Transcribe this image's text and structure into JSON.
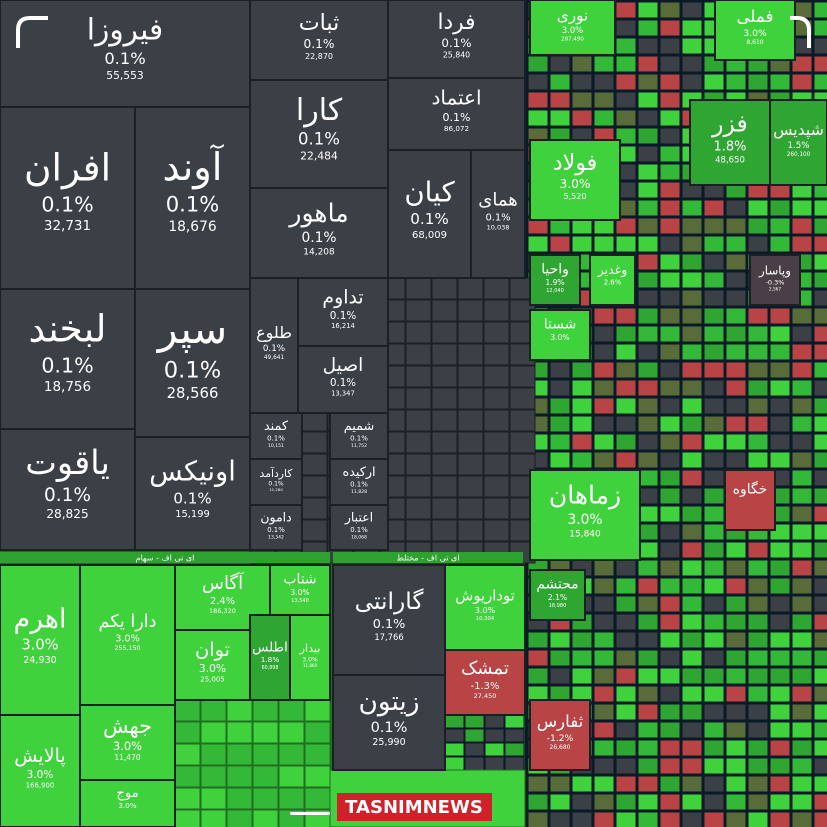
{
  "tiles": [
    {
      "name": "فیروزا",
      "change": "0.1%",
      "volume": "55,553",
      "color": "#3b3f46"
    },
    {
      "name": "ثبات",
      "change": "0.1%",
      "volume": "22,870",
      "color": "#3b3f46"
    },
    {
      "name": "فردا",
      "change": "0.1%",
      "volume": "25,840",
      "color": "#3b3f46"
    },
    {
      "name": "اعتماد",
      "change": "0.1%",
      "volume": "86,072",
      "color": "#3b3f46"
    },
    {
      "name": "افران",
      "change": "0.1%",
      "volume": "32,731",
      "color": "#3b3f46"
    },
    {
      "name": "آوند",
      "change": "0.1%",
      "volume": "18,676",
      "color": "#3b3f46"
    },
    {
      "name": "کارا",
      "change": "0.1%",
      "volume": "22,484",
      "color": "#3b3f46"
    },
    {
      "name": "ماهور",
      "change": "0.1%",
      "volume": "14,208",
      "color": "#3b3f46"
    },
    {
      "name": "کیان",
      "change": "0.1%",
      "volume": "68,009",
      "color": "#3b3f46"
    },
    {
      "name": "همای",
      "change": "0.1%",
      "volume": "10,038",
      "color": "#3b3f46"
    },
    {
      "name": "لبخند",
      "change": "0.1%",
      "volume": "18,756",
      "color": "#3b3f46"
    },
    {
      "name": "سپر",
      "change": "0.1%",
      "volume": "28,566",
      "color": "#3b3f46"
    },
    {
      "name": "یاقوت",
      "change": "0.1%",
      "volume": "28,825",
      "color": "#3b3f46"
    },
    {
      "name": "اونیکس",
      "change": "0.1%",
      "volume": "15,199",
      "color": "#3b3f46"
    },
    {
      "name": "تداوم",
      "change": "0.1%",
      "volume": "16,214",
      "color": "#3b3f46"
    },
    {
      "name": "اصیل",
      "change": "0.1%",
      "volume": "13,347",
      "color": "#3b3f46"
    },
    {
      "name": "طلوع",
      "change": "0.1%",
      "volume": "49,641",
      "color": "#3b3f46"
    },
    {
      "name": "کمند",
      "change": "0.1%",
      "volume": "10,151",
      "color": "#3b3f46"
    },
    {
      "name": "شمیم",
      "change": "0.1%",
      "volume": "11,752",
      "color": "#3b3f46"
    },
    {
      "name": "کاردآمد",
      "change": "0.1%",
      "volume": "11,280",
      "color": "#3b3f46"
    },
    {
      "name": "ارکیده",
      "change": "0.1%",
      "volume": "11,828",
      "color": "#3b3f46"
    },
    {
      "name": "دامون",
      "change": "0.1%",
      "volume": "13,342",
      "color": "#3b3f46"
    },
    {
      "name": "اعتبار",
      "change": "0.1%",
      "volume": "18,068",
      "color": "#3b3f46"
    },
    {
      "name": "اهرم",
      "change": "3.0%",
      "volume": "24,930",
      "color": "#3fd23c"
    },
    {
      "name": "دارا یکم",
      "change": "3.0%",
      "volume": "255,150",
      "color": "#3fd23c"
    },
    {
      "name": "آگاس",
      "change": "2.4%",
      "volume": "186,320",
      "color": "#3fd23c"
    },
    {
      "name": "شتاب",
      "change": "3.0%",
      "volume": "13,540",
      "color": "#3fd23c"
    },
    {
      "name": "توان",
      "change": "3.0%",
      "volume": "25,005",
      "color": "#3fd23c"
    },
    {
      "name": "اطلس",
      "change": "1.8%",
      "volume": "60,898",
      "color": "#2fa532"
    },
    {
      "name": "بیدار",
      "change": "3.0%",
      "volume": "11,860",
      "color": "#3fd23c"
    },
    {
      "name": "جهش",
      "change": "3.0%",
      "volume": "11,470",
      "color": "#3fd23c"
    },
    {
      "name": "پالایش",
      "change": "3.0%",
      "volume": "166,900",
      "color": "#3fd23c"
    },
    {
      "name": "موج",
      "change": "3.0%",
      "volume": "",
      "color": "#3fd23c"
    },
    {
      "name": "گارانتی",
      "change": "0.1%",
      "volume": "17,766",
      "color": "#3b3f46"
    },
    {
      "name": "زیتون",
      "change": "0.1%",
      "volume": "25,990",
      "color": "#3b3f46"
    },
    {
      "name": "توداریوش",
      "change": "3.0%",
      "volume": "10,304",
      "color": "#3fd23c"
    },
    {
      "name": "تمشک",
      "change": "-1.3%",
      "volume": "27,450",
      "color": "#b94446"
    },
    {
      "name": "نوری",
      "change": "3.0%",
      "volume": "287,490",
      "color": "#3fd23c"
    },
    {
      "name": "فملی",
      "change": "3.0%",
      "volume": "8,610",
      "color": "#3fd23c"
    },
    {
      "name": "فزر",
      "change": "1.8%",
      "volume": "48,650",
      "color": "#2fa532"
    },
    {
      "name": "شپدیس",
      "change": "1.5%",
      "volume": "260,100",
      "color": "#2fa532"
    },
    {
      "name": "فولاد",
      "change": "3.0%",
      "volume": "5,520",
      "color": "#3fd23c"
    },
    {
      "name": "واحیا",
      "change": "1.9%",
      "volume": "12,040",
      "color": "#2fa532"
    },
    {
      "name": "وغدیر",
      "change": "2.6%",
      "volume": "",
      "color": "#3fd23c"
    },
    {
      "name": "شستا",
      "change": "3.0%",
      "volume": "",
      "color": "#3fd23c"
    },
    {
      "name": "وپاسار",
      "change": "-0.3%",
      "volume": "2,567",
      "color": "#4a3f46"
    },
    {
      "name": "زماهان",
      "change": "3.0%",
      "volume": "15,840",
      "color": "#3fd23c"
    },
    {
      "name": "خگاوه",
      "change": "",
      "volume": "",
      "color": "#b94446"
    },
    {
      "name": "محتشم",
      "change": "2.1%",
      "volume": "18,980",
      "color": "#2fa532"
    },
    {
      "name": "ثفارس",
      "change": "-1.2%",
      "volume": "26,680",
      "color": "#b94446"
    }
  ],
  "headers": [
    "ای تی اف - سهام",
    "ای تی اف - مختلط"
  ],
  "watermark": "TASNIMNEWS"
}
